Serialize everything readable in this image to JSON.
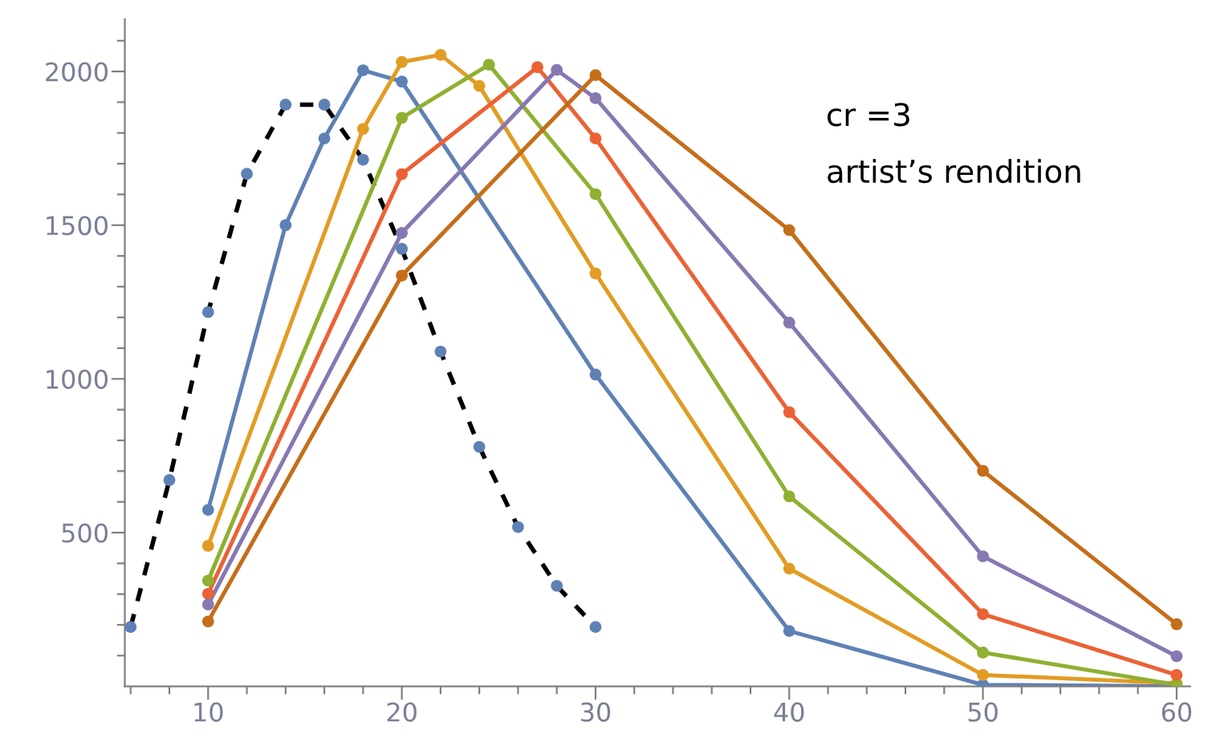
{
  "chart_data": {
    "type": "line",
    "xlim": [
      5.7,
      60.7
    ],
    "ylim": [
      0,
      2170
    ],
    "xticks": [
      {
        "value": 6,
        "label": null
      },
      {
        "value": 8,
        "label": null
      },
      10,
      {
        "value": 12,
        "label": null
      },
      {
        "value": 14,
        "label": null
      },
      {
        "value": 16,
        "label": null
      },
      {
        "value": 18,
        "label": null
      },
      20,
      {
        "value": 22,
        "label": null
      },
      {
        "value": 24,
        "label": null
      },
      {
        "value": 26,
        "label": null
      },
      {
        "value": 28,
        "label": null
      },
      30,
      {
        "value": 32,
        "label": null
      },
      {
        "value": 34,
        "label": null
      },
      {
        "value": 36,
        "label": null
      },
      {
        "value": 38,
        "label": null
      },
      40,
      {
        "value": 42,
        "label": null
      },
      {
        "value": 44,
        "label": null
      },
      {
        "value": 46,
        "label": null
      },
      {
        "value": 48,
        "label": null
      },
      50,
      {
        "value": 52,
        "label": null
      },
      {
        "value": 54,
        "label": null
      },
      {
        "value": 56,
        "label": null
      },
      {
        "value": 58,
        "label": null
      },
      60
    ],
    "yticks": [
      {
        "value": 100,
        "label": null
      },
      {
        "value": 200,
        "label": null
      },
      {
        "value": 300,
        "label": null
      },
      {
        "value": 400,
        "label": null
      },
      500,
      {
        "value": 600,
        "label": null
      },
      {
        "value": 700,
        "label": null
      },
      {
        "value": 800,
        "label": null
      },
      {
        "value": 900,
        "label": null
      },
      1000,
      {
        "value": 1100,
        "label": null
      },
      {
        "value": 1200,
        "label": null
      },
      {
        "value": 1300,
        "label": null
      },
      {
        "value": 1400,
        "label": null
      },
      1500,
      {
        "value": 1600,
        "label": null
      },
      {
        "value": 1700,
        "label": null
      },
      {
        "value": 1800,
        "label": null
      },
      {
        "value": 1900,
        "label": null
      },
      2000,
      {
        "value": 2100,
        "label": null
      }
    ],
    "grid": false,
    "legend": false,
    "marker": "circle",
    "annotations": [
      "cr =3",
      "artist’s rendition"
    ],
    "series": [
      {
        "color": "#000000",
        "line_style": "dashed",
        "colors": [
          "#5e81b5",
          "#5e81b5",
          "#5e81b5",
          "#5e81b5",
          "#5e81b5",
          "#5e81b5",
          "#5e81b5",
          "#5e81b5",
          "#5e81b5",
          "#5e81b5",
          "#5e81b5",
          "#5e81b5",
          "#5e81b5"
        ],
        "x": [
          6,
          8,
          10,
          12,
          14,
          16,
          18,
          20,
          22,
          24,
          26,
          28,
          30
        ],
        "values": [
          193,
          671,
          1217,
          1667,
          1892,
          1892,
          1713,
          1423,
          1089,
          779,
          518,
          327,
          193
        ]
      },
      {
        "color": "#5e81b5",
        "x": [
          10,
          14,
          16,
          18,
          20,
          30,
          40,
          50,
          60
        ],
        "values": [
          574,
          1500,
          1782,
          2004,
          1967,
          1014,
          180,
          5,
          0
        ]
      },
      {
        "color": "#e19c24",
        "x": [
          10,
          18,
          20,
          22,
          24,
          30,
          40,
          50,
          60
        ],
        "values": [
          457,
          1813,
          2031,
          2054,
          1953,
          1343,
          383,
          37,
          10
        ]
      },
      {
        "color": "#8fb032",
        "x": [
          10,
          20,
          24.5,
          30,
          40,
          50,
          60
        ],
        "values": [
          344,
          1849,
          2022,
          1601,
          618,
          110,
          5
        ]
      },
      {
        "color": "#eb6235",
        "x": [
          10,
          20,
          27,
          30,
          40,
          50,
          60
        ],
        "values": [
          301,
          1666,
          2014,
          1782,
          892,
          235,
          37
        ]
      },
      {
        "color": "#8778b3",
        "x": [
          10,
          20,
          28,
          30,
          40,
          50,
          60
        ],
        "values": [
          266,
          1475,
          2005,
          1913,
          1183,
          423,
          98
        ]
      },
      {
        "color": "#c56e1a",
        "x": [
          10,
          20,
          30,
          40,
          50,
          60
        ],
        "values": [
          211,
          1336,
          1988,
          1484,
          701,
          202
        ]
      }
    ]
  }
}
